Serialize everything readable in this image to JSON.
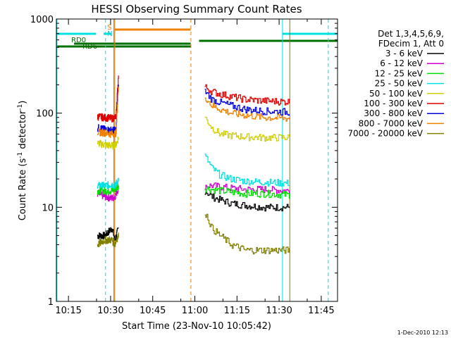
{
  "chart_data": {
    "type": "line",
    "title": "HESSI Observing Summary Count Rates",
    "xlabel": "Start Time (23-Nov-10 10:05:42)",
    "ylabel": "Count Rate (s",
    "ylabel_sup1": "-1",
    "ylabel_mid": " detector",
    "ylabel_sup2": "-1",
    "ylabel_end": ")",
    "xlim_min": [
      5.7,
      105.8
    ],
    "ylim": [
      1,
      1000
    ],
    "yscale": "log",
    "x_ticks": [
      {
        "min": 10,
        "label": "10:15"
      },
      {
        "min": 25,
        "label": "10:30"
      },
      {
        "min": 40,
        "label": "10:45"
      },
      {
        "min": 55,
        "label": "11:00"
      },
      {
        "min": 70,
        "label": "11:15"
      },
      {
        "min": 85,
        "label": "11:30"
      },
      {
        "min": 100,
        "label": "11:45"
      }
    ],
    "y_ticks": [
      {
        "v": 1,
        "label": "1"
      },
      {
        "v": 10,
        "label": "10"
      },
      {
        "v": 100,
        "label": "100"
      },
      {
        "v": 1000,
        "label": "1000"
      }
    ],
    "legend_header": [
      "Det 1,3,4,5,6,9,",
      "FDecim 1, Att 0"
    ],
    "series": [
      {
        "name": "3 - 6 keV",
        "color": "#000000",
        "seg1": [
          5,
          5,
          6,
          4.5,
          5,
          6
        ],
        "seg2": [
          15,
          13,
          12,
          11,
          10.5,
          10,
          10
        ]
      },
      {
        "name": "6 - 12 keV",
        "color": "#d000d0",
        "seg1": [
          14,
          13,
          12.5,
          13,
          14,
          16
        ],
        "seg2": [
          17,
          17,
          16.5,
          16,
          15.5,
          15.5,
          15
        ]
      },
      {
        "name": "12 - 25 keV",
        "color": "#00dd00",
        "seg1": [
          15,
          15,
          15,
          15.5,
          16,
          17
        ],
        "seg2": [
          16,
          15.5,
          15,
          14.5,
          14,
          14,
          13.5
        ]
      },
      {
        "name": "25 - 50 keV",
        "color": "#00e0e0",
        "seg1": [
          17,
          17,
          17.5,
          17,
          18,
          20
        ],
        "seg2": [
          35,
          26,
          22,
          20,
          19,
          18.5,
          18
        ]
      },
      {
        "name": "50 - 100 keV",
        "color": "#d0d000",
        "seg1": [
          48,
          46,
          45,
          46,
          47,
          55
        ],
        "seg2": [
          90,
          70,
          60,
          58,
          56,
          55,
          55
        ]
      },
      {
        "name": "100 - 300 keV",
        "color": "#e00000",
        "seg1": [
          92,
          90,
          88,
          90,
          92,
          250
        ],
        "seg2": [
          190,
          170,
          160,
          150,
          140,
          135,
          132
        ]
      },
      {
        "name": "300 - 800 keV",
        "color": "#0000dd",
        "seg1": [
          70,
          67,
          66,
          66,
          68,
          200
        ],
        "seg2": [
          170,
          140,
          130,
          120,
          110,
          105,
          103
        ]
      },
      {
        "name": "800 - 7000 keV",
        "color": "#f08000",
        "seg1": [
          63,
          62,
          60,
          61,
          62,
          180
        ],
        "seg2": [
          150,
          120,
          110,
          100,
          95,
          90,
          88
        ]
      },
      {
        "name": "7000 - 20000 keV",
        "color": "#808000",
        "seg1": [
          4,
          4.5,
          4.5,
          4,
          4.5,
          5
        ],
        "seg2": [
          9,
          6,
          5,
          4,
          3.5,
          3.5,
          3.5
        ]
      }
    ],
    "seg1_x": [
      20.3,
      23,
      25.5,
      26.5,
      27,
      27.8
    ],
    "seg2_x": [
      58.5,
      61,
      64,
      68,
      73,
      80,
      88.6
    ],
    "annotations": [
      {
        "text": "RD0",
        "color": "#006600"
      },
      {
        "text": "RD6",
        "color": "#006600"
      },
      {
        "text": "S",
        "color": "#f08000"
      },
      {
        "text": "N",
        "color": "#00cccc"
      }
    ],
    "footer": "1-Dec-2010 12:13"
  }
}
